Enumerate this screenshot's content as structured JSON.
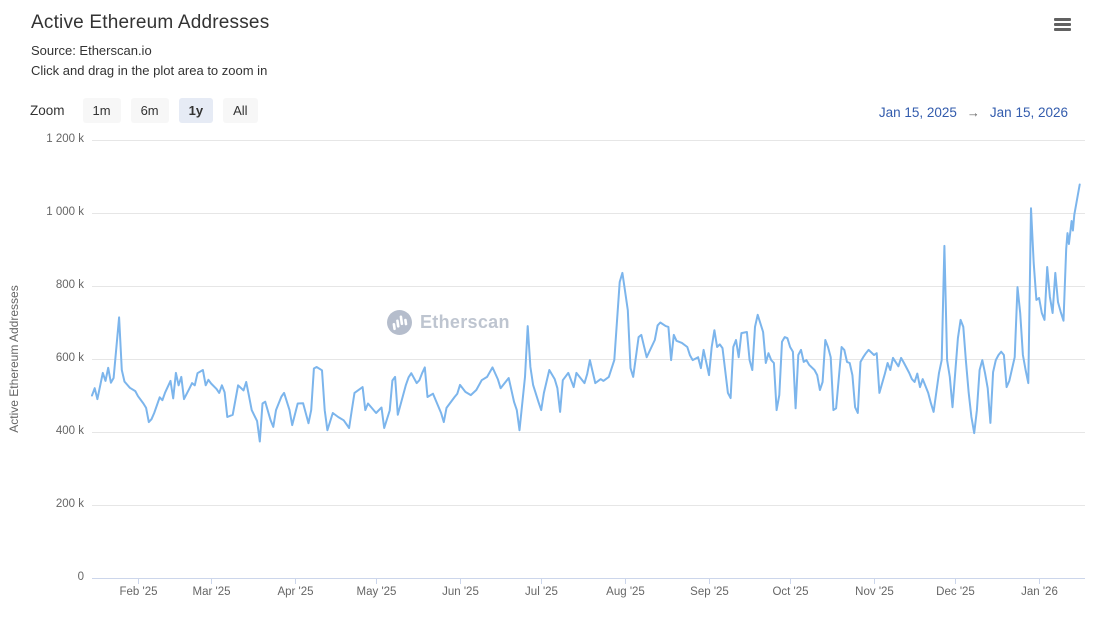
{
  "header": {
    "title": "Active Ethereum Addresses",
    "subtitle_line1": "Source: Etherscan.io",
    "subtitle_line2": "Click and drag in the plot area to zoom in"
  },
  "range_selector": {
    "zoom_label": "Zoom",
    "buttons": [
      {
        "label": "1m",
        "selected": false
      },
      {
        "label": "6m",
        "selected": false
      },
      {
        "label": "1y",
        "selected": true
      },
      {
        "label": "All",
        "selected": false
      }
    ],
    "from_date": "Jan 15, 2025",
    "arrow": "→",
    "to_date": "Jan 15, 2026"
  },
  "watermark": {
    "text": "Etherscan"
  },
  "chart_data": {
    "type": "line",
    "title": "Active Ethereum Addresses",
    "ylabel": "Active Ethereum Addresses",
    "xlabel": "",
    "y_unit": "k",
    "ylim": [
      0,
      1200
    ],
    "grid": true,
    "legend": false,
    "line_color": "#7cb5ec",
    "grid_color": "#e6e6e6",
    "axis_line_color": "#ccd6eb",
    "x_range": {
      "start": "Jan 15, 2025",
      "end": "Jan 15, 2026",
      "total_days": 365
    },
    "yticks": [
      {
        "value": 0,
        "label": "0"
      },
      {
        "value": 200,
        "label": "200 k"
      },
      {
        "value": 400,
        "label": "400 k"
      },
      {
        "value": 600,
        "label": "600 k"
      },
      {
        "value": 800,
        "label": "800 k"
      },
      {
        "value": 1000,
        "label": "1 000 k"
      },
      {
        "value": 1200,
        "label": "1 200 k"
      }
    ],
    "xticks": [
      {
        "day": 17,
        "label": "Feb '25"
      },
      {
        "day": 44,
        "label": "Mar '25"
      },
      {
        "day": 75,
        "label": "Apr '25"
      },
      {
        "day": 105,
        "label": "May '25"
      },
      {
        "day": 136,
        "label": "Jun '25"
      },
      {
        "day": 166,
        "label": "Jul '25"
      },
      {
        "day": 197,
        "label": "Aug '25"
      },
      {
        "day": 228,
        "label": "Sep '25"
      },
      {
        "day": 258,
        "label": "Oct '25"
      },
      {
        "day": 289,
        "label": "Nov '25"
      },
      {
        "day": 319,
        "label": "Dec '25"
      },
      {
        "day": 350,
        "label": "Jan '26"
      }
    ],
    "series": [
      {
        "name": "Active Ethereum Addresses",
        "unit": "k",
        "points": [
          [
            0,
            500
          ],
          [
            1,
            520
          ],
          [
            2,
            490
          ],
          [
            4,
            562
          ],
          [
            5,
            540
          ],
          [
            6,
            576
          ],
          [
            7,
            535
          ],
          [
            8,
            548
          ],
          [
            10,
            714
          ],
          [
            11,
            570
          ],
          [
            12,
            538
          ],
          [
            14,
            521
          ],
          [
            16,
            512
          ],
          [
            17,
            498
          ],
          [
            19,
            478
          ],
          [
            20,
            466
          ],
          [
            21,
            427
          ],
          [
            22,
            435
          ],
          [
            23,
            452
          ],
          [
            25,
            495
          ],
          [
            26,
            487
          ],
          [
            27,
            508
          ],
          [
            29,
            540
          ],
          [
            30,
            492
          ],
          [
            31,
            562
          ],
          [
            32,
            528
          ],
          [
            33,
            551
          ],
          [
            34,
            490
          ],
          [
            36,
            519
          ],
          [
            37,
            534
          ],
          [
            38,
            528
          ],
          [
            39,
            561
          ],
          [
            41,
            570
          ],
          [
            42,
            528
          ],
          [
            43,
            543
          ],
          [
            44,
            533
          ],
          [
            46,
            518
          ],
          [
            47,
            507
          ],
          [
            48,
            528
          ],
          [
            49,
            509
          ],
          [
            50,
            441
          ],
          [
            52,
            447
          ],
          [
            54,
            528
          ],
          [
            56,
            514
          ],
          [
            57,
            537
          ],
          [
            58,
            500
          ],
          [
            59,
            460
          ],
          [
            61,
            430
          ],
          [
            62,
            374
          ],
          [
            63,
            478
          ],
          [
            64,
            483
          ],
          [
            66,
            432
          ],
          [
            67,
            414
          ],
          [
            68,
            460
          ],
          [
            70,
            497
          ],
          [
            71,
            507
          ],
          [
            73,
            460
          ],
          [
            74,
            419
          ],
          [
            76,
            478
          ],
          [
            78,
            479
          ],
          [
            80,
            424
          ],
          [
            81,
            460
          ],
          [
            82,
            574
          ],
          [
            83,
            578
          ],
          [
            85,
            569
          ],
          [
            86,
            460
          ],
          [
            87,
            405
          ],
          [
            89,
            452
          ],
          [
            91,
            441
          ],
          [
            93,
            432
          ],
          [
            95,
            411
          ],
          [
            96,
            460
          ],
          [
            97,
            507
          ],
          [
            100,
            523
          ],
          [
            101,
            460
          ],
          [
            102,
            478
          ],
          [
            105,
            452
          ],
          [
            107,
            467
          ],
          [
            108,
            411
          ],
          [
            110,
            459
          ],
          [
            111,
            541
          ],
          [
            112,
            551
          ],
          [
            113,
            447
          ],
          [
            116,
            529
          ],
          [
            117,
            550
          ],
          [
            118,
            561
          ],
          [
            120,
            534
          ],
          [
            121,
            542
          ],
          [
            122,
            561
          ],
          [
            123,
            577
          ],
          [
            124,
            496
          ],
          [
            126,
            505
          ],
          [
            129,
            452
          ],
          [
            130,
            427
          ],
          [
            131,
            466
          ],
          [
            134,
            496
          ],
          [
            135,
            505
          ],
          [
            136,
            529
          ],
          [
            138,
            510
          ],
          [
            140,
            501
          ],
          [
            142,
            515
          ],
          [
            144,
            542
          ],
          [
            146,
            551
          ],
          [
            148,
            577
          ],
          [
            150,
            544
          ],
          [
            151,
            520
          ],
          [
            154,
            548
          ],
          [
            156,
            482
          ],
          [
            157,
            460
          ],
          [
            158,
            405
          ],
          [
            160,
            551
          ],
          [
            161,
            690
          ],
          [
            162,
            578
          ],
          [
            163,
            529
          ],
          [
            165,
            482
          ],
          [
            166,
            460
          ],
          [
            167,
            507
          ],
          [
            169,
            570
          ],
          [
            171,
            545
          ],
          [
            172,
            520
          ],
          [
            173,
            455
          ],
          [
            174,
            542
          ],
          [
            176,
            562
          ],
          [
            178,
            523
          ],
          [
            179,
            562
          ],
          [
            182,
            534
          ],
          [
            183,
            559
          ],
          [
            184,
            597
          ],
          [
            186,
            534
          ],
          [
            188,
            545
          ],
          [
            189,
            540
          ],
          [
            191,
            551
          ],
          [
            193,
            597
          ],
          [
            195,
            811
          ],
          [
            196,
            836
          ],
          [
            198,
            734
          ],
          [
            199,
            575
          ],
          [
            200,
            551
          ],
          [
            202,
            660
          ],
          [
            203,
            666
          ],
          [
            204,
            635
          ],
          [
            205,
            605
          ],
          [
            208,
            652
          ],
          [
            209,
            692
          ],
          [
            210,
            700
          ],
          [
            212,
            690
          ],
          [
            213,
            688
          ],
          [
            214,
            597
          ],
          [
            215,
            666
          ],
          [
            216,
            650
          ],
          [
            218,
            644
          ],
          [
            220,
            633
          ],
          [
            221,
            610
          ],
          [
            222,
            597
          ],
          [
            224,
            605
          ],
          [
            225,
            575
          ],
          [
            226,
            625
          ],
          [
            228,
            556
          ],
          [
            229,
            633
          ],
          [
            230,
            679
          ],
          [
            231,
            633
          ],
          [
            232,
            640
          ],
          [
            233,
            630
          ],
          [
            235,
            507
          ],
          [
            236,
            493
          ],
          [
            237,
            633
          ],
          [
            238,
            652
          ],
          [
            239,
            605
          ],
          [
            240,
            671
          ],
          [
            242,
            674
          ],
          [
            243,
            597
          ],
          [
            244,
            570
          ],
          [
            245,
            688
          ],
          [
            246,
            721
          ],
          [
            248,
            674
          ],
          [
            249,
            589
          ],
          [
            250,
            616
          ],
          [
            251,
            597
          ],
          [
            252,
            589
          ],
          [
            253,
            460
          ],
          [
            254,
            501
          ],
          [
            255,
            647
          ],
          [
            256,
            660
          ],
          [
            257,
            657
          ],
          [
            258,
            633
          ],
          [
            259,
            620
          ],
          [
            260,
            465
          ],
          [
            261,
            611
          ],
          [
            262,
            625
          ],
          [
            263,
            592
          ],
          [
            264,
            597
          ],
          [
            265,
            584
          ],
          [
            267,
            570
          ],
          [
            268,
            556
          ],
          [
            269,
            515
          ],
          [
            270,
            537
          ],
          [
            271,
            652
          ],
          [
            272,
            633
          ],
          [
            273,
            605
          ],
          [
            274,
            460
          ],
          [
            275,
            465
          ],
          [
            277,
            633
          ],
          [
            278,
            625
          ],
          [
            279,
            592
          ],
          [
            280,
            589
          ],
          [
            281,
            556
          ],
          [
            282,
            468
          ],
          [
            283,
            452
          ],
          [
            284,
            592
          ],
          [
            285,
            605
          ],
          [
            286,
            616
          ],
          [
            287,
            625
          ],
          [
            289,
            611
          ],
          [
            290,
            616
          ],
          [
            291,
            507
          ],
          [
            293,
            560
          ],
          [
            294,
            589
          ],
          [
            295,
            570
          ],
          [
            296,
            603
          ],
          [
            298,
            580
          ],
          [
            299,
            603
          ],
          [
            300,
            590
          ],
          [
            302,
            562
          ],
          [
            303,
            545
          ],
          [
            304,
            537
          ],
          [
            305,
            560
          ],
          [
            306,
            523
          ],
          [
            307,
            545
          ],
          [
            309,
            507
          ],
          [
            310,
            479
          ],
          [
            311,
            455
          ],
          [
            313,
            562
          ],
          [
            314,
            597
          ],
          [
            315,
            910
          ],
          [
            316,
            597
          ],
          [
            317,
            551
          ],
          [
            318,
            468
          ],
          [
            319,
            562
          ],
          [
            320,
            657
          ],
          [
            321,
            707
          ],
          [
            322,
            688
          ],
          [
            323,
            592
          ],
          [
            324,
            507
          ],
          [
            325,
            441
          ],
          [
            326,
            397
          ],
          [
            327,
            460
          ],
          [
            328,
            570
          ],
          [
            329,
            597
          ],
          [
            330,
            562
          ],
          [
            331,
            520
          ],
          [
            332,
            425
          ],
          [
            333,
            564
          ],
          [
            334,
            597
          ],
          [
            335,
            611
          ],
          [
            336,
            620
          ],
          [
            337,
            611
          ],
          [
            338,
            523
          ],
          [
            339,
            540
          ],
          [
            341,
            605
          ],
          [
            342,
            797
          ],
          [
            343,
            726
          ],
          [
            344,
            611
          ],
          [
            345,
            570
          ],
          [
            346,
            534
          ],
          [
            347,
            1013
          ],
          [
            348,
            863
          ],
          [
            349,
            762
          ],
          [
            350,
            767
          ],
          [
            351,
            726
          ],
          [
            352,
            707
          ],
          [
            353,
            852
          ],
          [
            354,
            770
          ],
          [
            355,
            726
          ],
          [
            356,
            836
          ],
          [
            357,
            756
          ],
          [
            358,
            729
          ],
          [
            359,
            705
          ],
          [
            360,
            902
          ],
          [
            360.5,
            945
          ],
          [
            361,
            915
          ],
          [
            362,
            978
          ],
          [
            362.5,
            952
          ],
          [
            363,
            995
          ],
          [
            365,
            1078
          ]
        ]
      }
    ]
  }
}
